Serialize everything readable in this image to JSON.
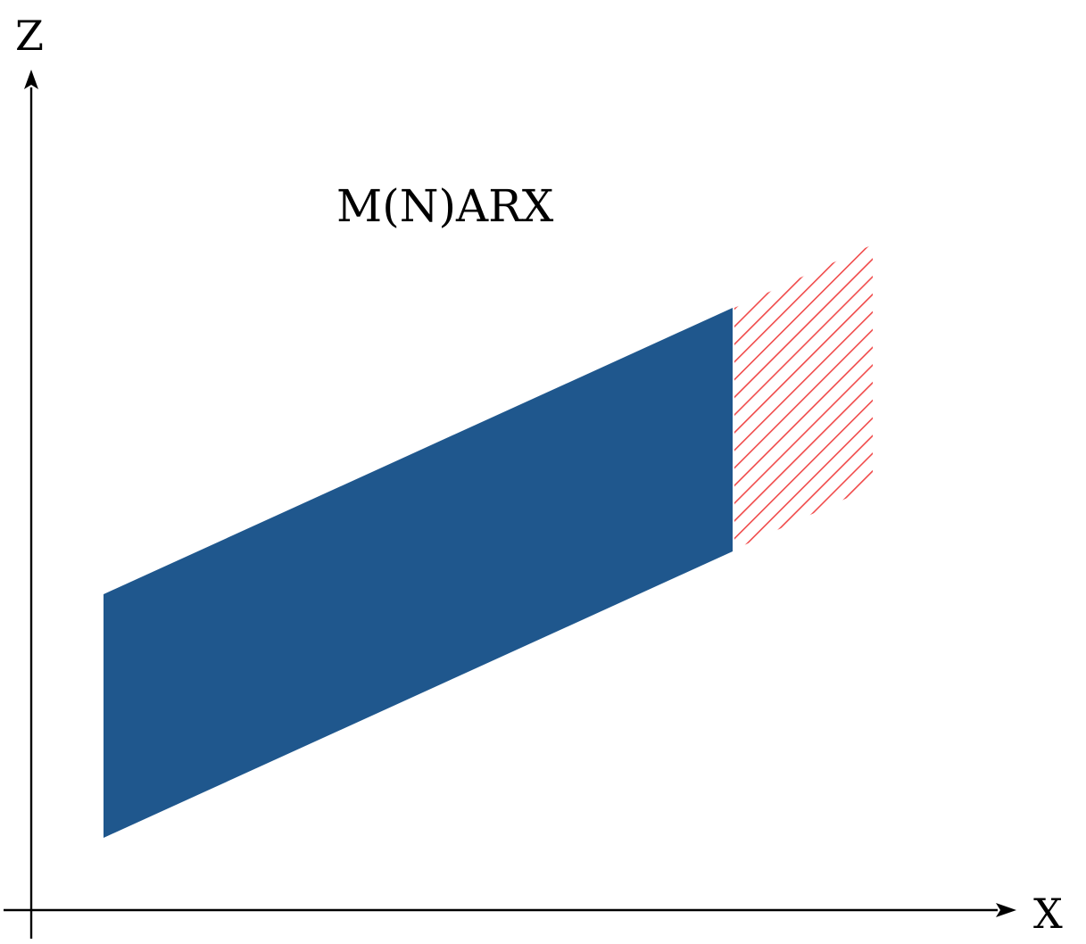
{
  "axes": {
    "x_label": "X",
    "z_label": "Z"
  },
  "title": "M(N)ARX",
  "colors": {
    "axis": "#000000",
    "region_fill": "#1f578d",
    "hatch": "#f04a4a",
    "background": "#ffffff"
  }
}
